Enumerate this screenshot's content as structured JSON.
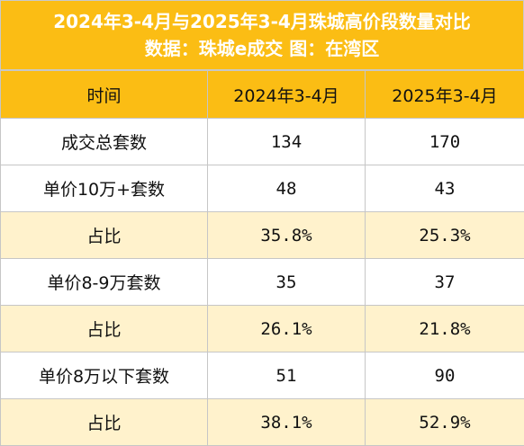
{
  "title": {
    "line1": "2024年3-4月与2025年3-4月珠城高价段数量对比",
    "line2": "数据：珠城e成交 图：在湾区"
  },
  "header": [
    "时间",
    "2024年3-4月",
    "2025年3-4月"
  ],
  "rows": [
    {
      "label": "成交总套数",
      "v2024": "134",
      "v2025": "170"
    },
    {
      "label": "单价10万+套数",
      "v2024": "48",
      "v2025": "43"
    },
    {
      "label": "占比",
      "v2024": "35.8%",
      "v2025": "25.3%"
    },
    {
      "label": "单价8-9万套数",
      "v2024": "35",
      "v2025": "37"
    },
    {
      "label": "占比",
      "v2024": "26.1%",
      "v2025": "21.8%"
    },
    {
      "label": "单价8万以下套数",
      "v2024": "51",
      "v2025": "90"
    },
    {
      "label": "占比",
      "v2024": "38.1%",
      "v2025": "52.9%"
    }
  ],
  "colors": {
    "accent": "#fbbd14",
    "shade": "#fff2cc",
    "border": "#c6c6c6"
  }
}
